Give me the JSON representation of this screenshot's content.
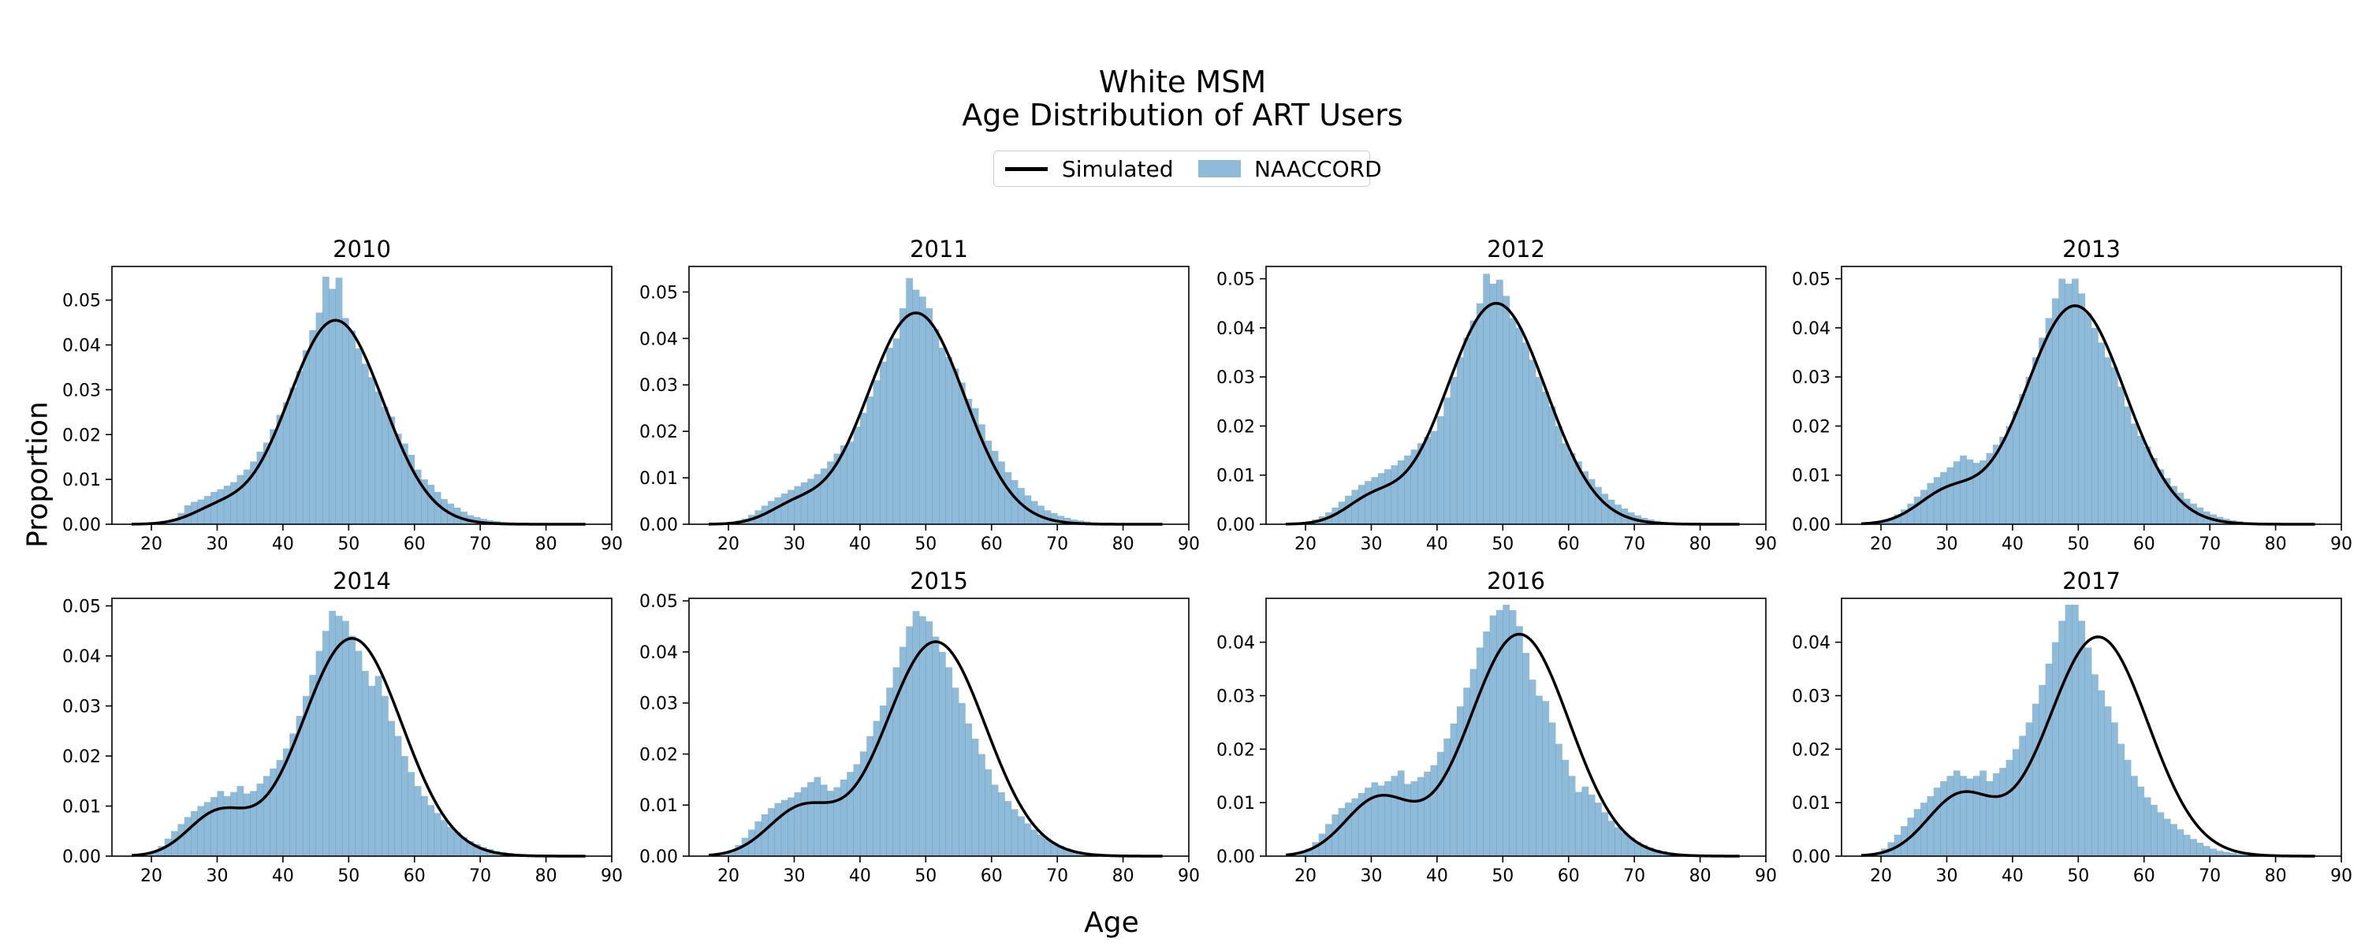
{
  "figure": {
    "title_line1": "White MSM",
    "title_line2": "Age Distribution of ART Users",
    "xlabel": "Age",
    "ylabel": "Proportion",
    "legend": {
      "line_label": "Simulated",
      "bar_label": "NAACCORD",
      "placement": "top-center"
    },
    "colors": {
      "bars": "#1f77b4",
      "bar_opacity": 0.5,
      "line": "#000000"
    }
  },
  "chart_data": [
    {
      "type": "bar",
      "title": "2010",
      "xlim": [
        14,
        90
      ],
      "ylim": [
        0,
        0.0575
      ],
      "xticks": [
        20,
        30,
        40,
        50,
        60,
        70,
        80,
        90
      ],
      "yticks": [
        0,
        0.01,
        0.02,
        0.03,
        0.04,
        0.05
      ],
      "ytick_labels": [
        "0.00",
        "0.01",
        "0.02",
        "0.03",
        "0.04",
        "0.05"
      ],
      "simulated": {
        "mu": 48,
        "sigma": 7.2,
        "peak": 0.0455,
        "shoulder": {
          "mu": 30,
          "sigma": 4,
          "amp": 0.003
        }
      },
      "naaccord": {
        "bin_start": 18,
        "bin_width": 1,
        "values": [
          0.0,
          0.0002,
          0.0004,
          0.0006,
          0.0008,
          0.0012,
          0.0025,
          0.0042,
          0.005,
          0.0055,
          0.0063,
          0.0072,
          0.0078,
          0.0086,
          0.0094,
          0.011,
          0.0122,
          0.014,
          0.0162,
          0.0182,
          0.0212,
          0.0244,
          0.0272,
          0.0305,
          0.0342,
          0.0388,
          0.0433,
          0.0472,
          0.0552,
          0.0525,
          0.055,
          0.046,
          0.0432,
          0.0392,
          0.0358,
          0.0328,
          0.0296,
          0.0262,
          0.024,
          0.0202,
          0.018,
          0.0155,
          0.0122,
          0.01,
          0.0088,
          0.0072,
          0.0056,
          0.0046,
          0.0037,
          0.0028,
          0.002,
          0.0016,
          0.0012,
          0.0009,
          0.0007,
          0.0005,
          0.0004,
          0.0003,
          0.0002,
          0.0002,
          0.0001,
          0.0001,
          0.0001,
          0.0
        ]
      }
    },
    {
      "type": "bar",
      "title": "2011",
      "xlim": [
        14,
        90
      ],
      "ylim": [
        0,
        0.0555
      ],
      "xticks": [
        20,
        30,
        40,
        50,
        60,
        70,
        80,
        90
      ],
      "yticks": [
        0,
        0.01,
        0.02,
        0.03,
        0.04,
        0.05
      ],
      "ytick_labels": [
        "0.00",
        "0.01",
        "0.02",
        "0.03",
        "0.04",
        "0.05"
      ],
      "simulated": {
        "mu": 48.5,
        "sigma": 7.4,
        "peak": 0.0455,
        "shoulder": {
          "mu": 30,
          "sigma": 4,
          "amp": 0.0035
        }
      },
      "naaccord": {
        "bin_start": 18,
        "bin_width": 1,
        "values": [
          0.0,
          0.0002,
          0.0004,
          0.0008,
          0.0012,
          0.002,
          0.003,
          0.004,
          0.005,
          0.0058,
          0.0066,
          0.0074,
          0.0082,
          0.009,
          0.0098,
          0.0108,
          0.012,
          0.0135,
          0.0152,
          0.017,
          0.0178,
          0.021,
          0.024,
          0.0275,
          0.031,
          0.035,
          0.038,
          0.04,
          0.0465,
          0.053,
          0.0505,
          0.049,
          0.0465,
          0.042,
          0.038,
          0.036,
          0.0335,
          0.0305,
          0.027,
          0.025,
          0.0215,
          0.018,
          0.0158,
          0.0135,
          0.0112,
          0.0095,
          0.0078,
          0.0062,
          0.005,
          0.004,
          0.003,
          0.0024,
          0.0018,
          0.0014,
          0.001,
          0.0008,
          0.0006,
          0.0004,
          0.0003,
          0.0002,
          0.0002,
          0.0001,
          0.0001,
          0.0
        ]
      }
    },
    {
      "type": "bar",
      "title": "2012",
      "xlim": [
        14,
        90
      ],
      "ylim": [
        0,
        0.0525
      ],
      "xticks": [
        20,
        30,
        40,
        50,
        60,
        70,
        80,
        90
      ],
      "yticks": [
        0,
        0.01,
        0.02,
        0.03,
        0.04,
        0.05
      ],
      "ytick_labels": [
        "0.00",
        "0.01",
        "0.02",
        "0.03",
        "0.04",
        "0.05"
      ],
      "simulated": {
        "mu": 49,
        "sigma": 7.6,
        "peak": 0.045,
        "shoulder": {
          "mu": 30,
          "sigma": 4,
          "amp": 0.0045
        }
      },
      "naaccord": {
        "bin_start": 18,
        "bin_width": 1,
        "values": [
          0.0001,
          0.0003,
          0.0006,
          0.001,
          0.0016,
          0.0024,
          0.0034,
          0.0046,
          0.0058,
          0.007,
          0.008,
          0.0088,
          0.0096,
          0.0104,
          0.0112,
          0.012,
          0.013,
          0.014,
          0.0152,
          0.0165,
          0.0178,
          0.019,
          0.022,
          0.0258,
          0.03,
          0.034,
          0.038,
          0.0415,
          0.045,
          0.051,
          0.049,
          0.0498,
          0.0465,
          0.042,
          0.04,
          0.037,
          0.0335,
          0.03,
          0.027,
          0.024,
          0.02,
          0.0165,
          0.0145,
          0.0128,
          0.0108,
          0.0092,
          0.0076,
          0.0062,
          0.005,
          0.004,
          0.0032,
          0.0024,
          0.0018,
          0.0013,
          0.001,
          0.0007,
          0.0005,
          0.0004,
          0.0003,
          0.0002,
          0.0001,
          0.0001,
          0.0
        ]
      }
    },
    {
      "type": "bar",
      "title": "2013",
      "xlim": [
        14,
        90
      ],
      "ylim": [
        0,
        0.0525
      ],
      "xticks": [
        20,
        30,
        40,
        50,
        60,
        70,
        80,
        90
      ],
      "yticks": [
        0,
        0.01,
        0.02,
        0.03,
        0.04,
        0.05
      ],
      "ytick_labels": [
        "0.00",
        "0.01",
        "0.02",
        "0.03",
        "0.04",
        "0.05"
      ],
      "simulated": {
        "mu": 49.5,
        "sigma": 7.6,
        "peak": 0.0445,
        "shoulder": {
          "mu": 30,
          "sigma": 4.5,
          "amp": 0.006
        }
      },
      "naaccord": {
        "bin_start": 18,
        "bin_width": 1,
        "values": [
          0.0001,
          0.0003,
          0.0006,
          0.0012,
          0.002,
          0.003,
          0.0042,
          0.0056,
          0.007,
          0.0084,
          0.0096,
          0.0106,
          0.0116,
          0.0128,
          0.014,
          0.0132,
          0.0125,
          0.013,
          0.0145,
          0.0162,
          0.0178,
          0.02,
          0.023,
          0.0265,
          0.03,
          0.034,
          0.038,
          0.042,
          0.046,
          0.05,
          0.049,
          0.05,
          0.047,
          0.043,
          0.04,
          0.037,
          0.034,
          0.032,
          0.028,
          0.024,
          0.0205,
          0.018,
          0.0158,
          0.0135,
          0.0112,
          0.0094,
          0.0078,
          0.0064,
          0.0052,
          0.0042,
          0.0034,
          0.0026,
          0.002,
          0.0015,
          0.0011,
          0.0008,
          0.0006,
          0.0004,
          0.0003,
          0.0002,
          0.0001,
          0.0001,
          0.0
        ]
      }
    },
    {
      "type": "bar",
      "title": "2014",
      "xlim": [
        14,
        90
      ],
      "ylim": [
        0,
        0.0515
      ],
      "xticks": [
        20,
        30,
        40,
        50,
        60,
        70,
        80,
        90
      ],
      "yticks": [
        0,
        0.01,
        0.02,
        0.03,
        0.04,
        0.05
      ],
      "ytick_labels": [
        "0.00",
        "0.01",
        "0.02",
        "0.03",
        "0.04",
        "0.05"
      ],
      "simulated": {
        "mu": 50.5,
        "sigma": 7.6,
        "peak": 0.0435,
        "shoulder": {
          "mu": 30,
          "sigma": 4.5,
          "amp": 0.0082
        }
      },
      "naaccord": {
        "bin_start": 18,
        "bin_width": 1,
        "values": [
          0.0002,
          0.0005,
          0.001,
          0.002,
          0.0035,
          0.005,
          0.0064,
          0.0078,
          0.009,
          0.01,
          0.0108,
          0.0118,
          0.013,
          0.012,
          0.0128,
          0.014,
          0.0125,
          0.013,
          0.0145,
          0.016,
          0.0175,
          0.0192,
          0.0215,
          0.0245,
          0.028,
          0.032,
          0.0362,
          0.041,
          0.045,
          0.049,
          0.048,
          0.047,
          0.044,
          0.041,
          0.037,
          0.034,
          0.036,
          0.032,
          0.027,
          0.024,
          0.02,
          0.0168,
          0.014,
          0.012,
          0.0102,
          0.0086,
          0.0072,
          0.0058,
          0.0048,
          0.0038,
          0.003,
          0.0024,
          0.0018,
          0.0014,
          0.001,
          0.0008,
          0.0006,
          0.0004,
          0.0003,
          0.0002,
          0.0001,
          0.0001,
          0.0
        ]
      }
    },
    {
      "type": "bar",
      "title": "2015",
      "xlim": [
        14,
        90
      ],
      "ylim": [
        0,
        0.0505
      ],
      "xticks": [
        20,
        30,
        40,
        50,
        60,
        70,
        80,
        90
      ],
      "yticks": [
        0,
        0.01,
        0.02,
        0.03,
        0.04,
        0.05
      ],
      "ytick_labels": [
        "0.00",
        "0.01",
        "0.02",
        "0.03",
        "0.04",
        "0.05"
      ],
      "simulated": {
        "mu": 51.5,
        "sigma": 7.6,
        "peak": 0.042,
        "shoulder": {
          "mu": 31,
          "sigma": 5,
          "amp": 0.009
        }
      },
      "naaccord": {
        "bin_start": 18,
        "bin_width": 1,
        "values": [
          0.0002,
          0.0006,
          0.0012,
          0.0022,
          0.0036,
          0.0052,
          0.0068,
          0.0082,
          0.0094,
          0.0104,
          0.011,
          0.0115,
          0.0125,
          0.0135,
          0.0145,
          0.0155,
          0.014,
          0.0128,
          0.0135,
          0.015,
          0.0165,
          0.018,
          0.0205,
          0.0235,
          0.0265,
          0.0295,
          0.033,
          0.037,
          0.041,
          0.045,
          0.048,
          0.047,
          0.046,
          0.043,
          0.04,
          0.037,
          0.033,
          0.03,
          0.026,
          0.023,
          0.02,
          0.017,
          0.014,
          0.0125,
          0.0108,
          0.0092,
          0.0078,
          0.0064,
          0.0052,
          0.0042,
          0.0034,
          0.0026,
          0.002,
          0.0015,
          0.0011,
          0.0008,
          0.0006,
          0.0004,
          0.0003,
          0.0002,
          0.0001,
          0.0001,
          0.0
        ]
      }
    },
    {
      "type": "bar",
      "title": "2016",
      "xlim": [
        14,
        90
      ],
      "ylim": [
        0,
        0.0482
      ],
      "xticks": [
        20,
        30,
        40,
        50,
        60,
        70,
        80,
        90
      ],
      "yticks": [
        0,
        0.01,
        0.02,
        0.03,
        0.04
      ],
      "ytick_labels": [
        "0.00",
        "0.01",
        "0.02",
        "0.03",
        "0.04"
      ],
      "simulated": {
        "mu": 52.5,
        "sigma": 7.6,
        "peak": 0.0415,
        "shoulder": {
          "mu": 31,
          "sigma": 5,
          "amp": 0.0105
        }
      },
      "naaccord": {
        "bin_start": 18,
        "bin_width": 1,
        "values": [
          0.0002,
          0.0006,
          0.0014,
          0.0026,
          0.0042,
          0.006,
          0.0078,
          0.009,
          0.01,
          0.0108,
          0.0118,
          0.0128,
          0.0138,
          0.0132,
          0.014,
          0.015,
          0.016,
          0.0135,
          0.014,
          0.0148,
          0.0158,
          0.017,
          0.0195,
          0.022,
          0.0248,
          0.028,
          0.0315,
          0.035,
          0.039,
          0.042,
          0.045,
          0.046,
          0.047,
          0.046,
          0.043,
          0.038,
          0.033,
          0.03,
          0.029,
          0.025,
          0.021,
          0.018,
          0.015,
          0.012,
          0.013,
          0.0115,
          0.01,
          0.0082,
          0.0066,
          0.0054,
          0.0044,
          0.0035,
          0.0027,
          0.0021,
          0.0016,
          0.0012,
          0.0009,
          0.0006,
          0.0004,
          0.0003,
          0.0002,
          0.0001,
          0.0
        ]
      }
    },
    {
      "type": "bar",
      "title": "2017",
      "xlim": [
        14,
        90
      ],
      "ylim": [
        0,
        0.0482
      ],
      "xticks": [
        20,
        30,
        40,
        50,
        60,
        70,
        80,
        90
      ],
      "yticks": [
        0,
        0.01,
        0.02,
        0.03,
        0.04
      ],
      "ytick_labels": [
        "0.00",
        "0.01",
        "0.02",
        "0.03",
        "0.04"
      ],
      "simulated": {
        "mu": 53,
        "sigma": 7.6,
        "peak": 0.041,
        "shoulder": {
          "mu": 32,
          "sigma": 5,
          "amp": 0.011
        }
      },
      "naaccord": {
        "bin_start": 18,
        "bin_width": 1,
        "values": [
          0.0002,
          0.0006,
          0.0014,
          0.0026,
          0.004,
          0.0056,
          0.0072,
          0.0088,
          0.01,
          0.0112,
          0.0128,
          0.014,
          0.015,
          0.016,
          0.015,
          0.0145,
          0.015,
          0.016,
          0.014,
          0.0155,
          0.0165,
          0.018,
          0.02,
          0.0225,
          0.025,
          0.0285,
          0.032,
          0.036,
          0.04,
          0.044,
          0.047,
          0.047,
          0.044,
          0.039,
          0.034,
          0.031,
          0.028,
          0.025,
          0.021,
          0.018,
          0.015,
          0.013,
          0.011,
          0.0096,
          0.0082,
          0.007,
          0.006,
          0.005,
          0.004,
          0.0032,
          0.0025,
          0.0019,
          0.0014,
          0.001,
          0.0008,
          0.0006,
          0.0004,
          0.0003,
          0.0002,
          0.0001,
          0.0001,
          0.0
        ]
      }
    }
  ]
}
